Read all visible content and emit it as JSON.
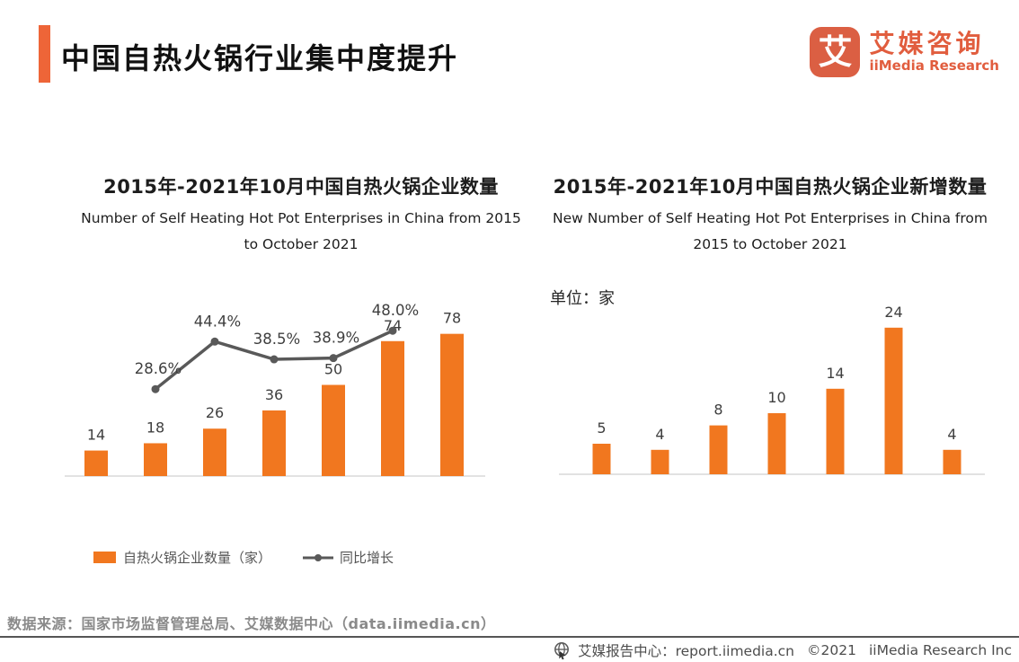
{
  "header": {
    "title": "中国自热火锅行业集中度提升",
    "logo": {
      "mark": "艾",
      "name_cn": "艾媒咨询",
      "name_en": "iiMedia Research"
    }
  },
  "chart_data": [
    {
      "type": "bar",
      "title_cn": "2015年-2021年10月中国自热火锅企业数量",
      "title_en": "Number of Self Heating Hot Pot Enterprises in China from 2015 to October 2021",
      "bar_series_name": "自热火锅企业数量（家）",
      "bar_values": [
        14,
        18,
        26,
        36,
        50,
        74,
        78
      ],
      "line_series_name": "同比增长",
      "line_values_pct": [
        null,
        28.6,
        44.4,
        38.5,
        38.9,
        48.0,
        null
      ],
      "line_labels": [
        "28.6%",
        "44.4%",
        "38.5%",
        "38.9%",
        "48.0%"
      ],
      "x_axis_labels_visible": false,
      "grid": false,
      "legend_position": "bottom"
    },
    {
      "type": "bar",
      "title_cn": "2015年-2021年10月中国自热火锅企业新增数量",
      "title_en": "New Number of Self Heating Hot Pot Enterprises in China from 2015 to October 2021",
      "unit_label": "单位：家",
      "values": [
        5,
        4,
        8,
        10,
        14,
        24,
        4
      ],
      "x_axis_labels_visible": false,
      "grid": false
    }
  ],
  "legend": {
    "bar_label": "自热火锅企业数量（家）",
    "line_label": "同比增长"
  },
  "footer": {
    "source": "数据来源：国家市场监督管理总局、艾媒数据中心（data.iimedia.cn）",
    "report_center": "艾媒报告中心：report.iimedia.cn",
    "copyright": "©2021",
    "company": "iiMedia Research Inc"
  },
  "colors": {
    "accent": "#EE6538",
    "bar": "#F1771F",
    "line": "#595959",
    "value_label": "#3F3F3F",
    "axis": "#D9D9D9",
    "logo": "#DB5F43"
  }
}
